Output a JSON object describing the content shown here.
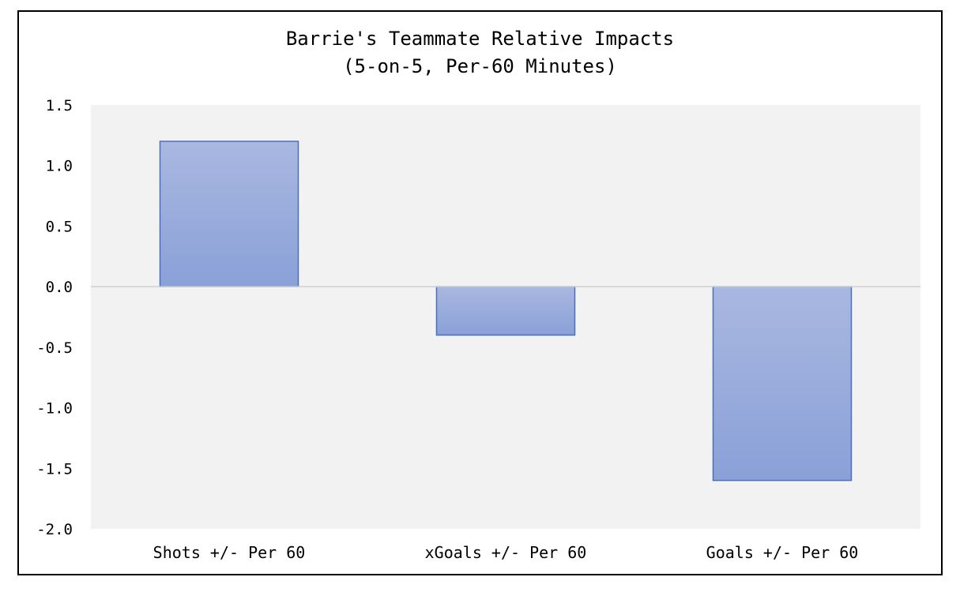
{
  "chart_data": {
    "type": "bar",
    "title": "Barrie's Teammate Relative Impacts",
    "subtitle": "(5-on-5, Per-60 Minutes)",
    "categories": [
      "Shots +/- Per 60",
      "xGoals +/- Per 60",
      "Goals +/- Per 60"
    ],
    "values": [
      1.2,
      -0.4,
      -1.6
    ],
    "ylim": [
      -2.0,
      1.5
    ],
    "yticks": [
      "1.5",
      "1.0",
      "0.5",
      "0.0",
      "-0.5",
      "-1.0",
      "-1.5",
      "-2.0"
    ],
    "ytick_values": [
      1.5,
      1.0,
      0.5,
      0.0,
      -0.5,
      -1.0,
      -1.5,
      -2.0
    ],
    "xlabel": "",
    "ylabel": "",
    "grid": false,
    "legend": "none",
    "colors": {
      "bar_fill_top": "#a9b8e0",
      "bar_fill_bottom": "#8aa0d8",
      "bar_stroke": "#4a70b8",
      "plot_background": "#f2f2f2",
      "zero_line": "#d0d0d0"
    }
  }
}
